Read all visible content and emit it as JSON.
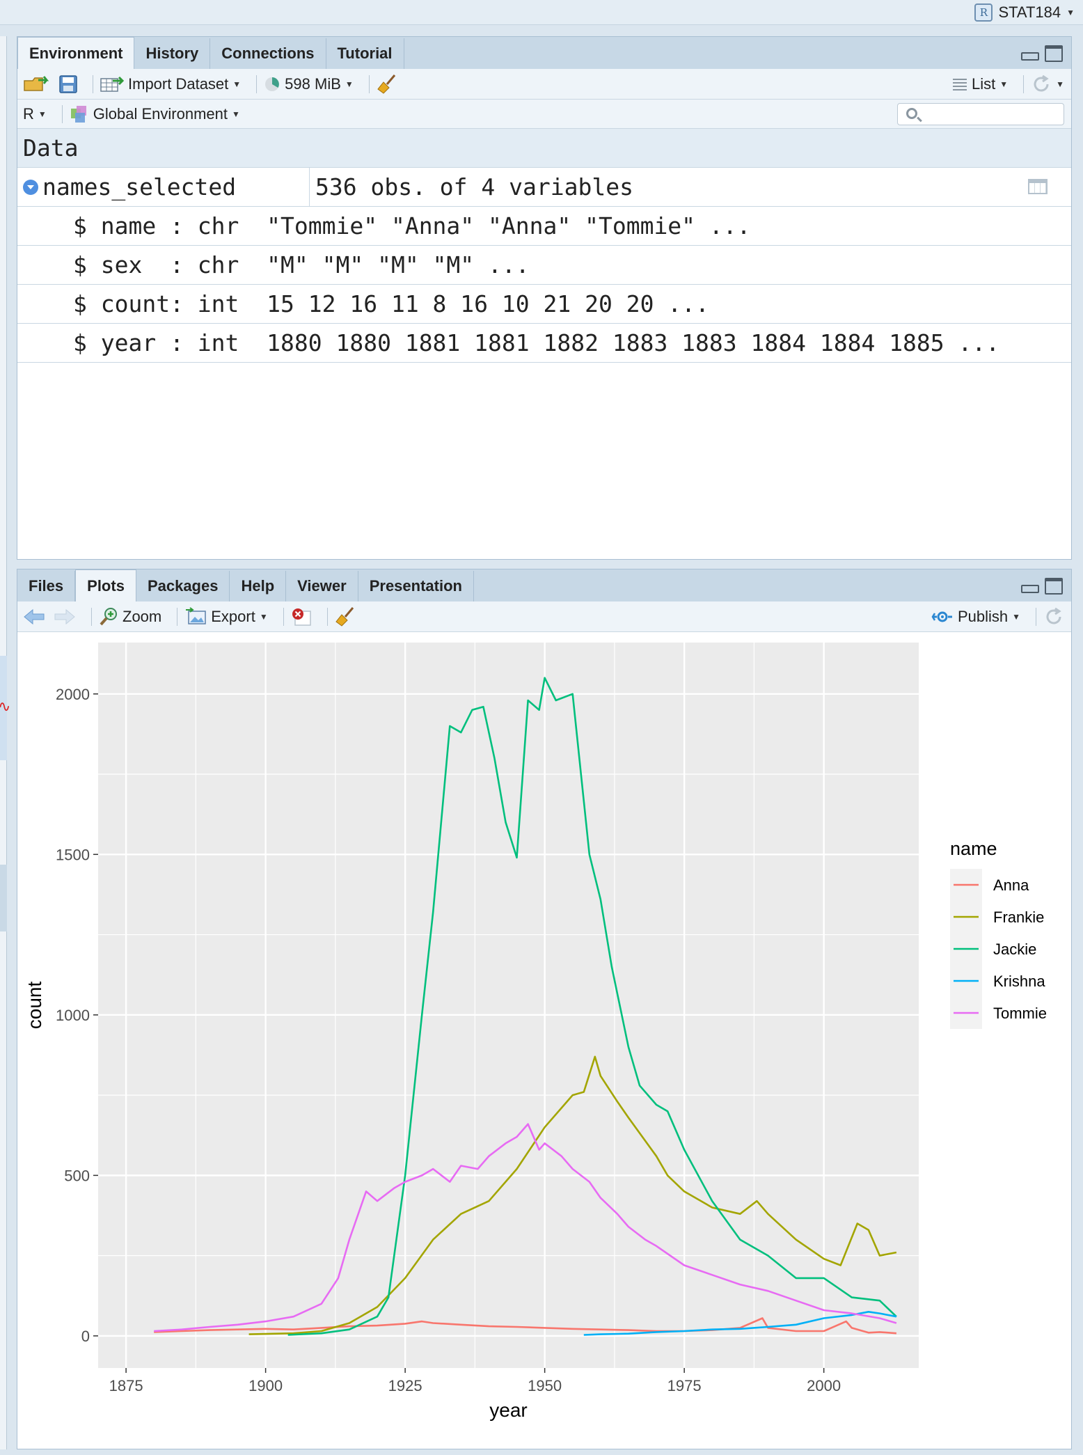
{
  "project": {
    "name": "STAT184"
  },
  "env_pane": {
    "tabs": [
      "Environment",
      "History",
      "Connections",
      "Tutorial"
    ],
    "toolbar": {
      "import_label": "Import Dataset",
      "memory": "598 MiB",
      "view_mode": "List"
    },
    "toolbar2": {
      "language": "R",
      "scope": "Global Environment",
      "search_placeholder": ""
    },
    "section": "Data",
    "object": {
      "name": "names_selected",
      "description": "536 obs. of 4 variables"
    },
    "variables": [
      "$ name : chr  \"Tommie\" \"Anna\" \"Anna\" \"Tommie\" ...",
      "$ sex  : chr  \"M\" \"M\" \"M\" \"M\" ...",
      "$ count: int  15 12 16 11 8 16 10 21 20 20 ...",
      "$ year : int  1880 1880 1881 1881 1882 1883 1883 1884 1884 1885 ..."
    ]
  },
  "plots_pane": {
    "tabs": [
      "Files",
      "Plots",
      "Packages",
      "Help",
      "Viewer",
      "Presentation"
    ],
    "toolbar": {
      "zoom": "Zoom",
      "export": "Export",
      "publish": "Publish"
    }
  },
  "chart_data": {
    "type": "line",
    "xlabel": "year",
    "ylabel": "count",
    "xlim": [
      1870,
      2017
    ],
    "ylim": [
      -100,
      2160
    ],
    "x_ticks": [
      1875,
      1900,
      1925,
      1950,
      1975,
      2000
    ],
    "y_ticks": [
      0,
      500,
      1000,
      1500,
      2000
    ],
    "grid": true,
    "legend": {
      "title": "name",
      "placement": "right"
    },
    "series": [
      {
        "name": "Anna",
        "color": "#F8766D",
        "x": [
          1880,
          1885,
          1890,
          1895,
          1900,
          1905,
          1910,
          1915,
          1920,
          1925,
          1928,
          1930,
          1935,
          1940,
          1945,
          1950,
          1955,
          1960,
          1965,
          1970,
          1975,
          1980,
          1985,
          1989,
          1990,
          1995,
          2000,
          2004,
          2005,
          2008,
          2010,
          2013
        ],
        "y": [
          12,
          15,
          18,
          20,
          22,
          20,
          25,
          30,
          32,
          38,
          45,
          40,
          35,
          30,
          28,
          25,
          22,
          20,
          18,
          15,
          15,
          18,
          25,
          55,
          25,
          15,
          15,
          45,
          25,
          10,
          12,
          8
        ]
      },
      {
        "name": "Frankie",
        "color": "#A3A500",
        "x": [
          1897,
          1900,
          1905,
          1910,
          1915,
          1920,
          1925,
          1930,
          1935,
          1940,
          1945,
          1950,
          1955,
          1957,
          1959,
          1960,
          1963,
          1965,
          1970,
          1972,
          1975,
          1980,
          1985,
          1988,
          1990,
          1995,
          2000,
          2003,
          2006,
          2008,
          2010,
          2013
        ],
        "y": [
          5,
          6,
          8,
          15,
          40,
          90,
          180,
          300,
          380,
          420,
          520,
          650,
          750,
          760,
          870,
          810,
          730,
          680,
          560,
          500,
          450,
          400,
          380,
          420,
          380,
          300,
          240,
          220,
          350,
          330,
          250,
          260
        ]
      },
      {
        "name": "Jackie",
        "color": "#00BF7D",
        "x": [
          1904,
          1910,
          1915,
          1920,
          1922,
          1925,
          1928,
          1930,
          1933,
          1935,
          1937,
          1939,
          1941,
          1943,
          1945,
          1947,
          1949,
          1950,
          1952,
          1955,
          1958,
          1960,
          1962,
          1965,
          1967,
          1970,
          1972,
          1975,
          1980,
          1985,
          1990,
          1995,
          2000,
          2005,
          2010,
          2013
        ],
        "y": [
          3,
          8,
          20,
          60,
          120,
          500,
          1000,
          1320,
          1900,
          1880,
          1950,
          1960,
          1800,
          1600,
          1490,
          1980,
          1950,
          2050,
          1980,
          2000,
          1500,
          1360,
          1150,
          900,
          780,
          720,
          700,
          580,
          420,
          300,
          250,
          180,
          180,
          120,
          110,
          60
        ]
      },
      {
        "name": "Krishna",
        "color": "#00B0F6",
        "x": [
          1957,
          1960,
          1965,
          1970,
          1975,
          1980,
          1985,
          1990,
          1995,
          2000,
          2005,
          2008,
          2010,
          2013
        ],
        "y": [
          3,
          5,
          7,
          12,
          15,
          20,
          22,
          28,
          35,
          55,
          65,
          75,
          70,
          60
        ]
      },
      {
        "name": "Tommie",
        "color": "#E76BF3",
        "x": [
          1880,
          1885,
          1890,
          1895,
          1900,
          1905,
          1910,
          1913,
          1915,
          1918,
          1920,
          1923,
          1925,
          1928,
          1930,
          1933,
          1935,
          1938,
          1940,
          1943,
          1945,
          1947,
          1949,
          1950,
          1953,
          1955,
          1958,
          1960,
          1963,
          1965,
          1968,
          1970,
          1975,
          1980,
          1985,
          1990,
          1995,
          2000,
          2005,
          2010,
          2013
        ],
        "y": [
          15,
          20,
          28,
          35,
          45,
          60,
          100,
          180,
          300,
          450,
          420,
          460,
          480,
          500,
          520,
          480,
          530,
          520,
          560,
          600,
          620,
          660,
          580,
          600,
          560,
          520,
          480,
          430,
          380,
          340,
          300,
          280,
          220,
          190,
          160,
          140,
          110,
          80,
          70,
          55,
          40
        ]
      }
    ]
  }
}
